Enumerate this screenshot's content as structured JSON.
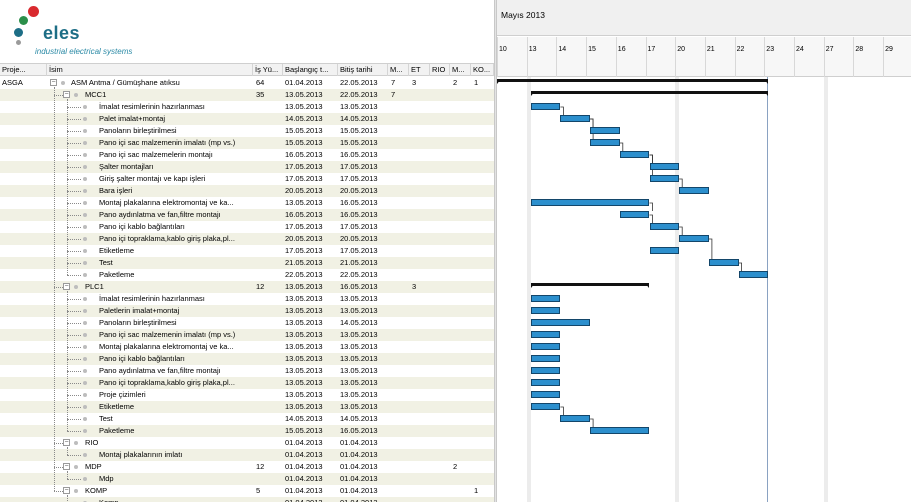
{
  "logo": {
    "brand": "eles",
    "tagline": "industrial electrical systems",
    "colors": [
      "#d9292e",
      "#2b8f4a",
      "#1d6e86",
      "#9a9a9a"
    ]
  },
  "grid": {
    "columns": [
      "Proje...",
      "İsim",
      "İş Yü...",
      "Başlangıç t...",
      "Bitiş tarihi",
      "M...",
      "ET",
      "RIO",
      "M...",
      "KO..."
    ],
    "rows": [
      {
        "project": "ASGA",
        "name": "ASM Antma / Gümüşhane atıksu",
        "level": 0,
        "toggle": "−",
        "workload": "64",
        "start": "01.04.2013",
        "end": "22.05.2013",
        "m": "7",
        "et": "3",
        "rio": "",
        "m2": "2",
        "ko": "1"
      },
      {
        "project": "",
        "name": "MCC1",
        "level": 1,
        "toggle": "−",
        "workload": "35",
        "start": "13.05.2013",
        "end": "22.05.2013",
        "m": "7",
        "et": "",
        "rio": "",
        "m2": "",
        "ko": ""
      },
      {
        "project": "",
        "name": "İmalat resimlerinin hazırlanması",
        "level": 2,
        "toggle": "",
        "workload": "",
        "start": "13.05.2013",
        "end": "13.05.2013",
        "m": "",
        "et": "",
        "rio": "",
        "m2": "",
        "ko": ""
      },
      {
        "project": "",
        "name": "Palet imalat+montaj",
        "level": 2,
        "toggle": "",
        "workload": "",
        "start": "14.05.2013",
        "end": "14.05.2013",
        "m": "",
        "et": "",
        "rio": "",
        "m2": "",
        "ko": ""
      },
      {
        "project": "",
        "name": "Panoların birleştirilmesi",
        "level": 2,
        "toggle": "",
        "workload": "",
        "start": "15.05.2013",
        "end": "15.05.2013",
        "m": "",
        "et": "",
        "rio": "",
        "m2": "",
        "ko": ""
      },
      {
        "project": "",
        "name": "Pano içi sac malzemenin imalatı (mp vs.)",
        "level": 2,
        "toggle": "",
        "workload": "",
        "start": "15.05.2013",
        "end": "15.05.2013",
        "m": "",
        "et": "",
        "rio": "",
        "m2": "",
        "ko": ""
      },
      {
        "project": "",
        "name": "Pano içi sac malzemelerin montajı",
        "level": 2,
        "toggle": "",
        "workload": "",
        "start": "16.05.2013",
        "end": "16.05.2013",
        "m": "",
        "et": "",
        "rio": "",
        "m2": "",
        "ko": ""
      },
      {
        "project": "",
        "name": "Şalter montajları",
        "level": 2,
        "toggle": "",
        "workload": "",
        "start": "17.05.2013",
        "end": "17.05.2013",
        "m": "",
        "et": "",
        "rio": "",
        "m2": "",
        "ko": ""
      },
      {
        "project": "",
        "name": "Giriş şalter montajı ve kapı işleri",
        "level": 2,
        "toggle": "",
        "workload": "",
        "start": "17.05.2013",
        "end": "17.05.2013",
        "m": "",
        "et": "",
        "rio": "",
        "m2": "",
        "ko": ""
      },
      {
        "project": "",
        "name": "Bara işleri",
        "level": 2,
        "toggle": "",
        "workload": "",
        "start": "20.05.2013",
        "end": "20.05.2013",
        "m": "",
        "et": "",
        "rio": "",
        "m2": "",
        "ko": ""
      },
      {
        "project": "",
        "name": "Montaj plakalarına elektromontaj ve ka...",
        "level": 2,
        "toggle": "",
        "workload": "",
        "start": "13.05.2013",
        "end": "16.05.2013",
        "m": "",
        "et": "",
        "rio": "",
        "m2": "",
        "ko": ""
      },
      {
        "project": "",
        "name": "Pano aydınlatma ve fan,filtre montajı",
        "level": 2,
        "toggle": "",
        "workload": "",
        "start": "16.05.2013",
        "end": "16.05.2013",
        "m": "",
        "et": "",
        "rio": "",
        "m2": "",
        "ko": ""
      },
      {
        "project": "",
        "name": "Pano içi kablo bağlantıları",
        "level": 2,
        "toggle": "",
        "workload": "",
        "start": "17.05.2013",
        "end": "17.05.2013",
        "m": "",
        "et": "",
        "rio": "",
        "m2": "",
        "ko": ""
      },
      {
        "project": "",
        "name": "Pano içi topraklama,kablo giriş plaka,pl...",
        "level": 2,
        "toggle": "",
        "workload": "",
        "start": "20.05.2013",
        "end": "20.05.2013",
        "m": "",
        "et": "",
        "rio": "",
        "m2": "",
        "ko": ""
      },
      {
        "project": "",
        "name": "Etiketleme",
        "level": 2,
        "toggle": "",
        "workload": "",
        "start": "17.05.2013",
        "end": "17.05.2013",
        "m": "",
        "et": "",
        "rio": "",
        "m2": "",
        "ko": ""
      },
      {
        "project": "",
        "name": "Test",
        "level": 2,
        "toggle": "",
        "workload": "",
        "start": "21.05.2013",
        "end": "21.05.2013",
        "m": "",
        "et": "",
        "rio": "",
        "m2": "",
        "ko": ""
      },
      {
        "project": "",
        "name": "Paketleme",
        "level": 2,
        "toggle": "",
        "workload": "",
        "start": "22.05.2013",
        "end": "22.05.2013",
        "m": "",
        "et": "",
        "rio": "",
        "m2": "",
        "ko": ""
      },
      {
        "project": "",
        "name": "PLC1",
        "level": 1,
        "toggle": "−",
        "workload": "12",
        "start": "13.05.2013",
        "end": "16.05.2013",
        "m": "",
        "et": "3",
        "rio": "",
        "m2": "",
        "ko": ""
      },
      {
        "project": "",
        "name": "İmalat resimlerinin hazırlanması",
        "level": 2,
        "toggle": "",
        "workload": "",
        "start": "13.05.2013",
        "end": "13.05.2013",
        "m": "",
        "et": "",
        "rio": "",
        "m2": "",
        "ko": ""
      },
      {
        "project": "",
        "name": "Paletlerin imalat+montaj",
        "level": 2,
        "toggle": "",
        "workload": "",
        "start": "13.05.2013",
        "end": "13.05.2013",
        "m": "",
        "et": "",
        "rio": "",
        "m2": "",
        "ko": ""
      },
      {
        "project": "",
        "name": "Panoların birleştirilmesi",
        "level": 2,
        "toggle": "",
        "workload": "",
        "start": "13.05.2013",
        "end": "14.05.2013",
        "m": "",
        "et": "",
        "rio": "",
        "m2": "",
        "ko": ""
      },
      {
        "project": "",
        "name": "Pano içi sac malzemenin imalatı (mp vs.)",
        "level": 2,
        "toggle": "",
        "workload": "",
        "start": "13.05.2013",
        "end": "13.05.2013",
        "m": "",
        "et": "",
        "rio": "",
        "m2": "",
        "ko": ""
      },
      {
        "project": "",
        "name": "Montaj plakalarına elektromontaj ve ka...",
        "level": 2,
        "toggle": "",
        "workload": "",
        "start": "13.05.2013",
        "end": "13.05.2013",
        "m": "",
        "et": "",
        "rio": "",
        "m2": "",
        "ko": ""
      },
      {
        "project": "",
        "name": "Pano içi kablo bağlantıları",
        "level": 2,
        "toggle": "",
        "workload": "",
        "start": "13.05.2013",
        "end": "13.05.2013",
        "m": "",
        "et": "",
        "rio": "",
        "m2": "",
        "ko": ""
      },
      {
        "project": "",
        "name": "Pano aydınlatma ve fan,filtre montajı",
        "level": 2,
        "toggle": "",
        "workload": "",
        "start": "13.05.2013",
        "end": "13.05.2013",
        "m": "",
        "et": "",
        "rio": "",
        "m2": "",
        "ko": ""
      },
      {
        "project": "",
        "name": "Pano içi topraklama,kablo giriş plaka,pl...",
        "level": 2,
        "toggle": "",
        "workload": "",
        "start": "13.05.2013",
        "end": "13.05.2013",
        "m": "",
        "et": "",
        "rio": "",
        "m2": "",
        "ko": ""
      },
      {
        "project": "",
        "name": "Proje çizimleri",
        "level": 2,
        "toggle": "",
        "workload": "",
        "start": "13.05.2013",
        "end": "13.05.2013",
        "m": "",
        "et": "",
        "rio": "",
        "m2": "",
        "ko": ""
      },
      {
        "project": "",
        "name": "Etiketleme",
        "level": 2,
        "toggle": "",
        "workload": "",
        "start": "13.05.2013",
        "end": "13.05.2013",
        "m": "",
        "et": "",
        "rio": "",
        "m2": "",
        "ko": ""
      },
      {
        "project": "",
        "name": "Test",
        "level": 2,
        "toggle": "",
        "workload": "",
        "start": "14.05.2013",
        "end": "14.05.2013",
        "m": "",
        "et": "",
        "rio": "",
        "m2": "",
        "ko": ""
      },
      {
        "project": "",
        "name": "Paketleme",
        "level": 2,
        "toggle": "",
        "workload": "",
        "start": "15.05.2013",
        "end": "16.05.2013",
        "m": "",
        "et": "",
        "rio": "",
        "m2": "",
        "ko": ""
      },
      {
        "project": "",
        "name": "RIO",
        "level": 1,
        "toggle": "−",
        "workload": "",
        "start": "01.04.2013",
        "end": "01.04.2013",
        "m": "",
        "et": "",
        "rio": "",
        "m2": "",
        "ko": ""
      },
      {
        "project": "",
        "name": "Montaj plakalarının imlatı",
        "level": 2,
        "toggle": "",
        "workload": "",
        "start": "01.04.2013",
        "end": "01.04.2013",
        "m": "",
        "et": "",
        "rio": "",
        "m2": "",
        "ko": ""
      },
      {
        "project": "",
        "name": "MDP",
        "level": 1,
        "toggle": "−",
        "workload": "12",
        "start": "01.04.2013",
        "end": "01.04.2013",
        "m": "",
        "et": "",
        "rio": "",
        "m2": "2",
        "ko": ""
      },
      {
        "project": "",
        "name": "Mdp",
        "level": 2,
        "toggle": "",
        "workload": "",
        "start": "01.04.2013",
        "end": "01.04.2013",
        "m": "",
        "et": "",
        "rio": "",
        "m2": "",
        "ko": ""
      },
      {
        "project": "",
        "name": "KOMP",
        "level": 1,
        "toggle": "−",
        "workload": "5",
        "start": "01.04.2013",
        "end": "01.04.2013",
        "m": "",
        "et": "",
        "rio": "",
        "m2": "",
        "ko": "1"
      },
      {
        "project": "",
        "name": "Komp",
        "level": 2,
        "toggle": "",
        "workload": "",
        "start": "01.04.2013",
        "end": "01.04.2013",
        "m": "",
        "et": "",
        "rio": "",
        "m2": "",
        "ko": ""
      }
    ]
  },
  "gantt": {
    "month_label": "Mayıs 2013",
    "day_labels": [
      "10",
      "13",
      "14",
      "15",
      "16",
      "17",
      "20",
      "21",
      "22",
      "23",
      "24",
      "27",
      "28",
      "29"
    ],
    "weekend_after_labels": [
      "10",
      "17",
      "24"
    ],
    "today_label": "23",
    "bar_color": "#2c8fcd",
    "bar_border_color": "#13466a",
    "summary_color": "#111111",
    "tasks": [
      {
        "row": 0,
        "type": "summary",
        "from": "10",
        "to": "22",
        "from_offset": 0.0,
        "to_offset": 1.0
      },
      {
        "row": 1,
        "type": "summary",
        "from": "13",
        "to": "22"
      },
      {
        "row": 2,
        "type": "task",
        "from": "13",
        "to": "13"
      },
      {
        "row": 3,
        "type": "task",
        "from": "14",
        "to": "14"
      },
      {
        "row": 4,
        "type": "task",
        "from": "15",
        "to": "15"
      },
      {
        "row": 5,
        "type": "task",
        "from": "15",
        "to": "15"
      },
      {
        "row": 6,
        "type": "task",
        "from": "16",
        "to": "16"
      },
      {
        "row": 7,
        "type": "task",
        "from": "17",
        "to": "17"
      },
      {
        "row": 8,
        "type": "task",
        "from": "17",
        "to": "17"
      },
      {
        "row": 9,
        "type": "task",
        "from": "20",
        "to": "20"
      },
      {
        "row": 10,
        "type": "task",
        "from": "13",
        "to": "16"
      },
      {
        "row": 11,
        "type": "task",
        "from": "16",
        "to": "16"
      },
      {
        "row": 12,
        "type": "task",
        "from": "17",
        "to": "17"
      },
      {
        "row": 13,
        "type": "task",
        "from": "20",
        "to": "20"
      },
      {
        "row": 14,
        "type": "task",
        "from": "17",
        "to": "17"
      },
      {
        "row": 15,
        "type": "task",
        "from": "21",
        "to": "21"
      },
      {
        "row": 16,
        "type": "task",
        "from": "22",
        "to": "22"
      },
      {
        "row": 17,
        "type": "summary",
        "from": "13",
        "to": "16"
      },
      {
        "row": 18,
        "type": "task",
        "from": "13",
        "to": "13"
      },
      {
        "row": 19,
        "type": "task",
        "from": "13",
        "to": "13"
      },
      {
        "row": 20,
        "type": "task",
        "from": "13",
        "to": "14"
      },
      {
        "row": 21,
        "type": "task",
        "from": "13",
        "to": "13"
      },
      {
        "row": 22,
        "type": "task",
        "from": "13",
        "to": "13"
      },
      {
        "row": 23,
        "type": "task",
        "from": "13",
        "to": "13"
      },
      {
        "row": 24,
        "type": "task",
        "from": "13",
        "to": "13"
      },
      {
        "row": 25,
        "type": "task",
        "from": "13",
        "to": "13"
      },
      {
        "row": 26,
        "type": "task",
        "from": "13",
        "to": "13"
      },
      {
        "row": 27,
        "type": "task",
        "from": "13",
        "to": "13"
      },
      {
        "row": 28,
        "type": "task",
        "from": "14",
        "to": "14"
      },
      {
        "row": 29,
        "type": "task",
        "from": "15",
        "to": "16"
      }
    ],
    "dependencies": [
      {
        "from": 2,
        "to": 3
      },
      {
        "from": 3,
        "to": 4
      },
      {
        "from": 3,
        "to": 5
      },
      {
        "from": 5,
        "to": 6
      },
      {
        "from": 6,
        "to": 7
      },
      {
        "from": 6,
        "to": 8
      },
      {
        "from": 8,
        "to": 9
      },
      {
        "from": 10,
        "to": 11
      },
      {
        "from": 11,
        "to": 12
      },
      {
        "from": 12,
        "to": 13
      },
      {
        "from": 13,
        "to": 15
      },
      {
        "from": 15,
        "to": 16
      },
      {
        "from": 27,
        "to": 28
      },
      {
        "from": 28,
        "to": 29
      }
    ]
  }
}
